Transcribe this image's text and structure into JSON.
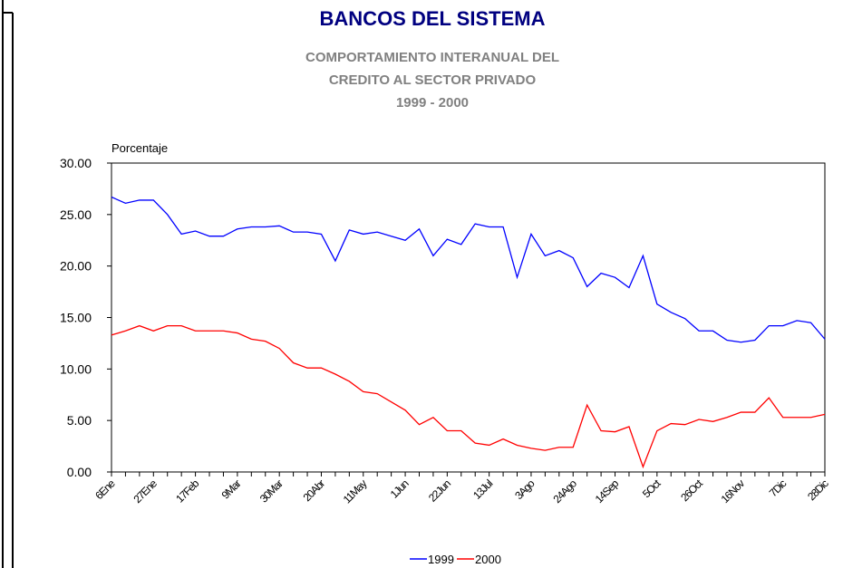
{
  "chart_data": {
    "type": "line",
    "title": "BANCOS DEL SISTEMA",
    "subtitle": [
      "COMPORTAMIENTO INTERANUAL DEL",
      "CREDITO AL SECTOR PRIVADO",
      "1999 - 2000"
    ],
    "y_label": "Porcentaje",
    "categories": [
      "6Ene",
      null,
      null,
      "27Ene",
      null,
      null,
      "17Feb",
      null,
      null,
      "9Mar",
      null,
      null,
      "30Mar",
      null,
      null,
      "20Abr",
      null,
      null,
      "11May",
      null,
      null,
      "1Jun",
      null,
      null,
      "22Jun",
      null,
      null,
      "13Jul",
      null,
      null,
      "3Ago",
      null,
      null,
      "24Ago",
      null,
      null,
      "14Sep",
      null,
      null,
      "5Oct",
      null,
      null,
      "26Oct",
      null,
      null,
      "16Nov",
      null,
      null,
      "7Dic",
      null,
      null,
      "28Dic"
    ],
    "series": [
      {
        "name": "1999",
        "color": "#0000ff",
        "values": [
          26.7,
          26.1,
          26.4,
          26.4,
          25.0,
          23.1,
          23.4,
          22.9,
          22.9,
          23.6,
          23.8,
          23.8,
          23.9,
          23.3,
          23.3,
          23.1,
          20.5,
          23.5,
          23.1,
          23.3,
          22.9,
          22.5,
          23.6,
          21.0,
          22.6,
          22.1,
          24.1,
          23.8,
          23.8,
          18.9,
          23.1,
          21.0,
          21.5,
          20.8,
          18.0,
          19.3,
          18.9,
          17.9,
          21.0,
          16.3,
          15.5,
          14.9,
          13.7,
          13.7,
          12.8,
          12.6,
          12.8,
          14.2,
          14.2,
          14.7,
          14.5,
          12.9
        ]
      },
      {
        "name": "2000",
        "color": "#ff0000",
        "values": [
          13.3,
          13.7,
          14.2,
          13.7,
          14.2,
          14.2,
          13.7,
          13.7,
          13.7,
          13.5,
          12.9,
          12.7,
          12.0,
          10.6,
          10.1,
          10.1,
          9.5,
          8.8,
          7.8,
          7.6,
          6.8,
          6.0,
          4.6,
          5.3,
          4.0,
          4.0,
          2.8,
          2.6,
          3.2,
          2.6,
          2.3,
          2.1,
          2.4,
          2.4,
          6.5,
          4.0,
          3.9,
          4.4,
          0.5,
          4.0,
          4.7,
          4.6,
          5.1,
          4.9,
          5.3,
          5.8,
          5.8,
          7.2,
          5.3,
          5.3,
          5.3,
          5.6
        ]
      }
    ],
    "ylim": [
      0,
      30
    ],
    "yticks": [
      {
        "value": 0,
        "label": "0.00"
      },
      {
        "value": 5,
        "label": "5.00"
      },
      {
        "value": 10,
        "label": "10.00"
      },
      {
        "value": 15,
        "label": "15.00"
      },
      {
        "value": 20,
        "label": "20.00"
      },
      {
        "value": 25,
        "label": "25.00"
      },
      {
        "value": 30,
        "label": "30.00"
      }
    ],
    "grid": false,
    "legend": "bottom"
  }
}
